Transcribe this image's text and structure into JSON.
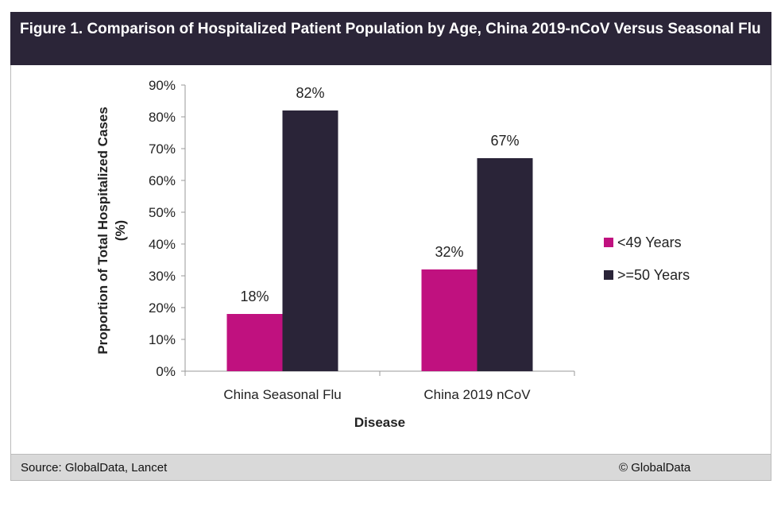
{
  "header": {
    "title": "Figure 1. Comparison of Hospitalized Patient Population by Age, China 2019-nCoV Versus Seasonal Flu"
  },
  "footer": {
    "source": "Source: GlobalData, Lancet",
    "copyright": "© GlobalData"
  },
  "chart_data": {
    "type": "bar",
    "title": "Figure 1. Comparison of Hospitalized Patient Population by Age, China 2019-nCoV Versus Seasonal Flu",
    "xlabel": "Disease",
    "ylabel": "Proportion of Total Hospitalized Cases (%)",
    "ylim": [
      0,
      90
    ],
    "yticks": [
      "0%",
      "10%",
      "20%",
      "30%",
      "40%",
      "50%",
      "60%",
      "70%",
      "80%",
      "90%"
    ],
    "categories": [
      "China Seasonal Flu",
      "China 2019 nCoV"
    ],
    "series": [
      {
        "name": "<49 Years",
        "values": [
          18,
          32
        ],
        "labels": [
          "18%",
          "32%"
        ],
        "color": "#c0117f"
      },
      {
        "name": ">=50 Years",
        "values": [
          82,
          67
        ],
        "labels": [
          "82%",
          "67%"
        ],
        "color": "#2a2438"
      }
    ],
    "legend": "right",
    "grid": false
  }
}
